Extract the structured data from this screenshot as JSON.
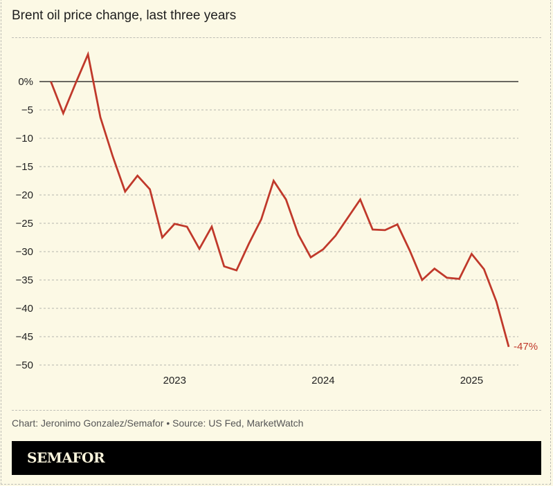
{
  "title": "Brent oil price change, last three years",
  "credit": "Chart: Jeronimo Gonzalez/Semafor • Source: US Fed, MarketWatch",
  "logo": "SEMAFOR",
  "colors": {
    "line": "#c0392b",
    "label": "#c0392b",
    "background": "#fcf9e5"
  },
  "chart_data": {
    "type": "line",
    "title": "Brent oil price change, last three years",
    "xlabel": "",
    "ylabel": "",
    "ylim": [
      -50,
      5
    ],
    "yticks": [
      0,
      -5,
      -10,
      -15,
      -20,
      -25,
      -30,
      -35,
      -40,
      -45,
      -50
    ],
    "ytick_labels": [
      "0%",
      "−5",
      "−10",
      "−15",
      "−20",
      "−25",
      "−30",
      "−35",
      "−40",
      "−45",
      "−50"
    ],
    "xticks": [
      {
        "x": "2023-01",
        "label": "2023"
      },
      {
        "x": "2024-01",
        "label": "2024"
      },
      {
        "x": "2025-01",
        "label": "2025"
      }
    ],
    "grid": true,
    "x": [
      "2022-03",
      "2022-04",
      "2022-05",
      "2022-06",
      "2022-07",
      "2022-08",
      "2022-09",
      "2022-10",
      "2022-11",
      "2022-12",
      "2023-01",
      "2023-02",
      "2023-03",
      "2023-04",
      "2023-05",
      "2023-06",
      "2023-07",
      "2023-08",
      "2023-09",
      "2023-10",
      "2023-11",
      "2023-12",
      "2024-01",
      "2024-02",
      "2024-03",
      "2024-04",
      "2024-05",
      "2024-06",
      "2024-07",
      "2024-08",
      "2024-09",
      "2024-10",
      "2024-11",
      "2024-12",
      "2025-01",
      "2025-02",
      "2025-03",
      "2025-04"
    ],
    "values": [
      0,
      -5.6,
      -0.3,
      4.8,
      -6.3,
      -13.2,
      -19.4,
      -16.6,
      -19.0,
      -27.5,
      -25.1,
      -25.6,
      -29.5,
      -25.6,
      -32.6,
      -33.3,
      -28.6,
      -24.3,
      -17.5,
      -20.8,
      -27.0,
      -31.0,
      -29.6,
      -27.2,
      -24.0,
      -20.8,
      -26.1,
      -26.2,
      -25.2,
      -29.8,
      -35.0,
      -33.0,
      -34.6,
      -34.8,
      -30.4,
      -33.1,
      -38.8,
      -46.8
    ],
    "end_label": "-47%"
  }
}
